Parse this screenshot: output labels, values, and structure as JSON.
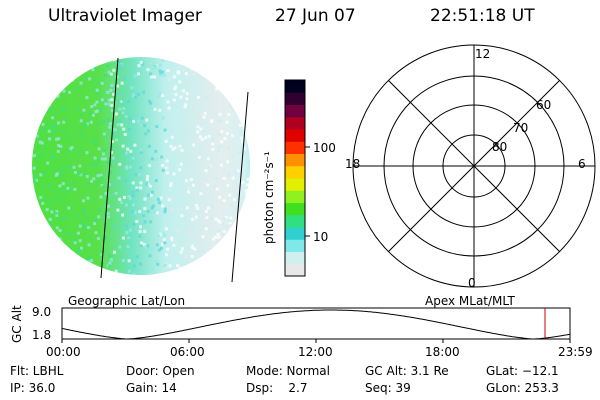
{
  "header": {
    "instrument": "Ultraviolet Imager",
    "date": "27 Jun 07",
    "time": "22:51:18 UT"
  },
  "colorbar": {
    "unit_label": "photon cm⁻²s⁻¹",
    "ticks": [
      "100",
      "10"
    ],
    "colors": [
      "#e8e8e8",
      "#d0f0f0",
      "#7fe8e8",
      "#30d0d0",
      "#30e080",
      "#40e020",
      "#90f020",
      "#e0f000",
      "#ffd000",
      "#ff9000",
      "#ff3000",
      "#e00000",
      "#b00020",
      "#700040",
      "#300030",
      "#000020"
    ]
  },
  "polar": {
    "mlt_labels": {
      "top": "12",
      "left": "18",
      "right": "6",
      "bottom": "0"
    },
    "lat_labels": [
      "60",
      "70",
      "80"
    ]
  },
  "timeline": {
    "left_label": "Geographic Lat/Lon",
    "right_label": "Apex MLat/MLT",
    "axis_title": "GC Alt",
    "y_ticks": [
      "9.0",
      "1.8"
    ],
    "x_ticks": [
      "00:00",
      "06:00",
      "12:00",
      "18:00",
      "23:59"
    ],
    "marker_color": "#cc0000"
  },
  "footer": {
    "col1": [
      "Flt: LBHL",
      "IP: 36.0"
    ],
    "col2": [
      "Door: Open",
      "Gain: 14"
    ],
    "col3": [
      "Mode: Normal",
      "Dsp:    2.7"
    ],
    "col4": [
      "GC Alt: 3.1 Re",
      "Seq: 39"
    ],
    "col5": [
      "GLat: −12.1",
      "GLon: 253.3"
    ]
  }
}
